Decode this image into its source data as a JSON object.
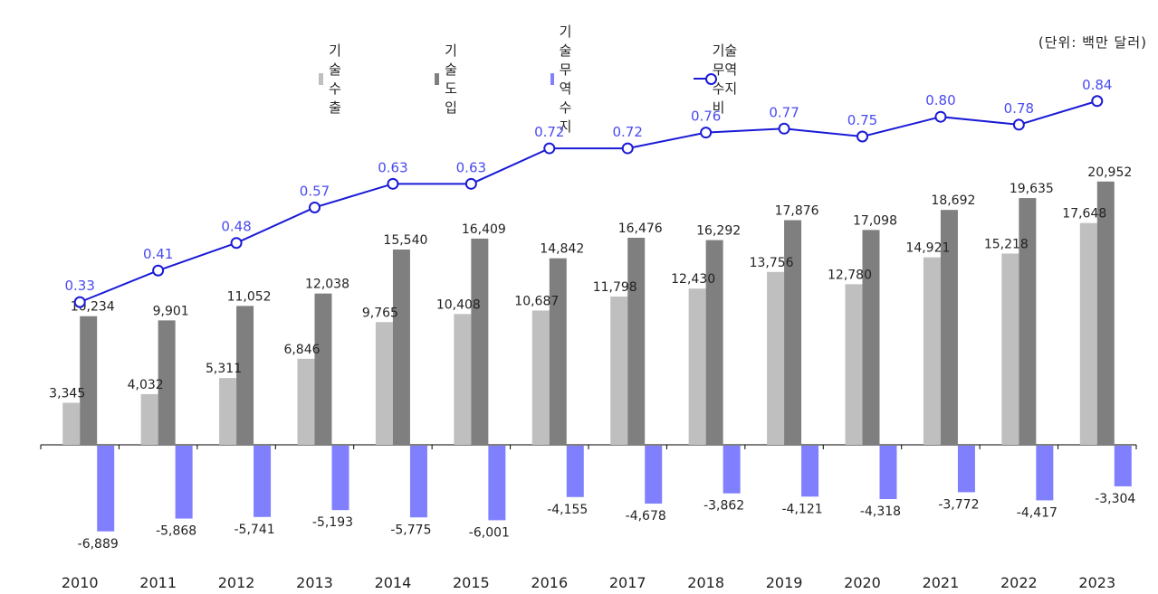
{
  "unit_label": "(단위: 백만 달러)",
  "colors": {
    "export": "#bfbfbf",
    "import": "#7f7f7f",
    "balance": "#8080ff",
    "ratio": "#1a1ad6",
    "ratio_label": "#4a4af0"
  },
  "chart_data": {
    "type": "bar",
    "categories": [
      "2010",
      "2011",
      "2012",
      "2013",
      "2014",
      "2015",
      "2016",
      "2017",
      "2018",
      "2019",
      "2020",
      "2021",
      "2022",
      "2023"
    ],
    "series": [
      {
        "name": "기술수출",
        "type": "bar",
        "values": [
          3345,
          4032,
          5311,
          6846,
          9765,
          10408,
          10687,
          11798,
          12430,
          13756,
          12780,
          14921,
          15218,
          17648
        ],
        "labels": [
          "3,345",
          "4,032",
          "5,311",
          "6,846",
          "9,765",
          "10,408",
          "10,687",
          "11,798",
          "12,430",
          "13,756",
          "12,780",
          "14,921",
          "15,218",
          "17,648"
        ]
      },
      {
        "name": "기술도입",
        "type": "bar",
        "values": [
          10234,
          9901,
          11052,
          12038,
          15540,
          16409,
          14842,
          16476,
          16292,
          17876,
          17098,
          18692,
          19635,
          20952
        ],
        "labels": [
          "10,234",
          "9,901",
          "11,052",
          "12,038",
          "15,540",
          "16,409",
          "14,842",
          "16,476",
          "16,292",
          "17,876",
          "17,098",
          "18,692",
          "19,635",
          "20,952"
        ]
      },
      {
        "name": "기술무역수지",
        "type": "bar",
        "values": [
          -6889,
          -5868,
          -5741,
          -5193,
          -5775,
          -6001,
          -4155,
          -4678,
          -3862,
          -4121,
          -4318,
          -3772,
          -4417,
          -3304
        ],
        "labels": [
          "-6,889",
          "-5,868",
          "-5,741",
          "-5,193",
          "-5,775",
          "-6,001",
          "-4,155",
          "-4,678",
          "-3,862",
          "-4,121",
          "-4,318",
          "-3,772",
          "-4,417",
          "-3,304"
        ]
      },
      {
        "name": "기술무역수지비",
        "type": "line",
        "values": [
          0.33,
          0.41,
          0.48,
          0.57,
          0.63,
          0.63,
          0.72,
          0.72,
          0.76,
          0.77,
          0.75,
          0.8,
          0.78,
          0.84
        ],
        "labels": [
          "0.33",
          "0.41",
          "0.48",
          "0.57",
          "0.63",
          "0.63",
          "0.72",
          "0.72",
          "0.76",
          "0.77",
          "0.75",
          "0.80",
          "0.78",
          "0.84"
        ]
      }
    ],
    "ylim": [
      -9500,
      30000
    ],
    "y2lim": [
      -0.84,
      1.05
    ],
    "grid": false,
    "legend_position": "top-center"
  }
}
